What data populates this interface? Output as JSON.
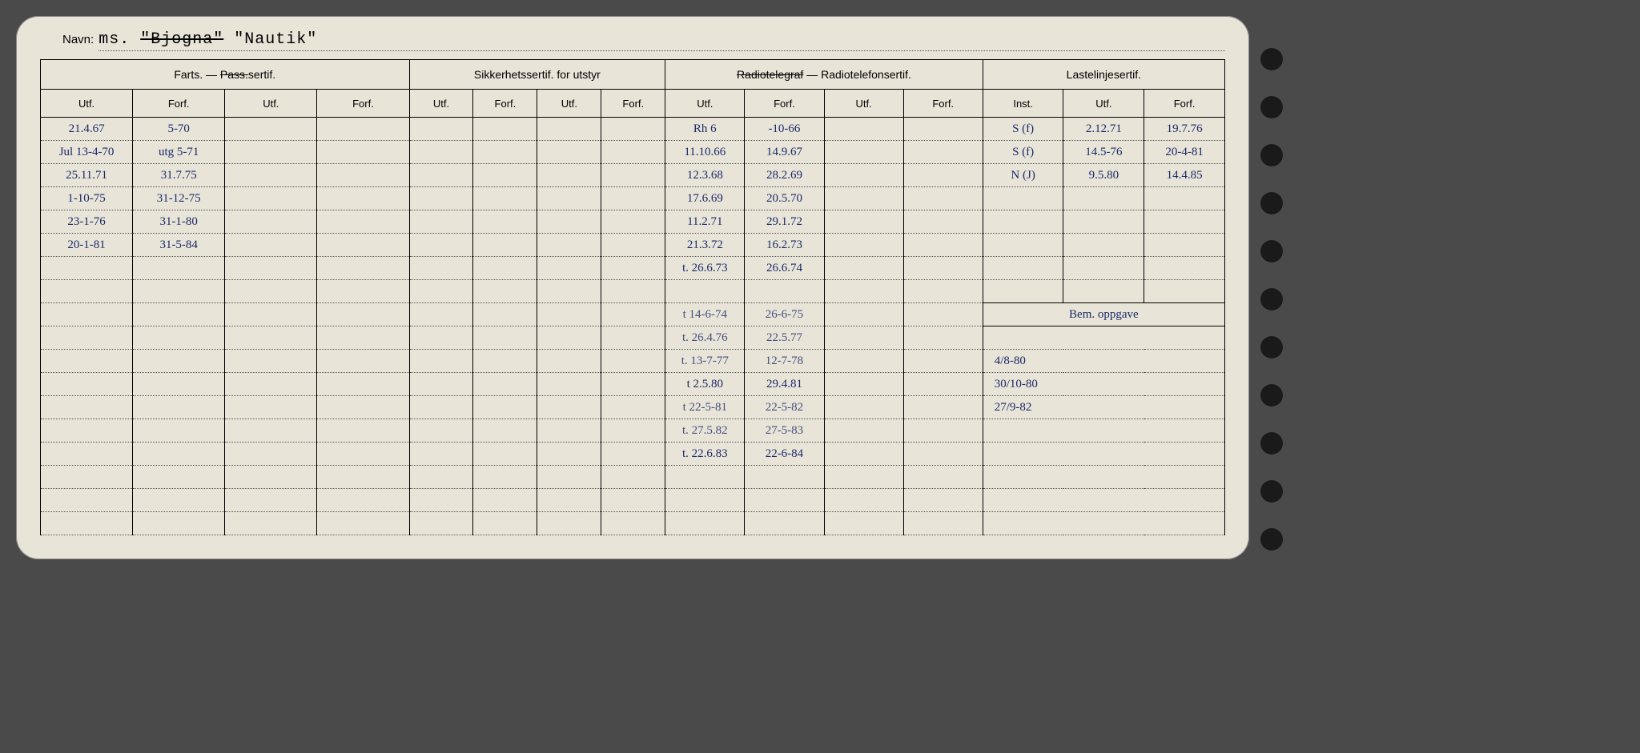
{
  "navn": {
    "label": "Navn:",
    "prefix": "ms.",
    "struck": "\"Bjogna\"",
    "current": "\"Nautik\""
  },
  "headers": {
    "farts": "Farts. — ",
    "farts_struck": "Pass.",
    "farts_suffix": "sertif.",
    "sikk": "Sikkerhetssertif. for utstyr",
    "radio_struck": "Radiotelegraf",
    "radio_suffix": " — Radiotelefonsertif.",
    "laste": "Lastelinjesertif.",
    "utf": "Utf.",
    "forf": "Forf.",
    "inst": "Inst.",
    "bem": "Bem. oppgave"
  },
  "farts": [
    {
      "u": "21.4.67",
      "f": "5-70"
    },
    {
      "u": "Jul 13-4-70",
      "f": "utg 5-71"
    },
    {
      "u": "25.11.71",
      "f": "31.7.75"
    },
    {
      "u": "1-10-75",
      "f": "31-12-75"
    },
    {
      "u": "23-1-76",
      "f": "31-1-80"
    },
    {
      "u": "20-1-81",
      "f": "31-5-84"
    }
  ],
  "radio": [
    {
      "u": "Rh 6",
      "f": "-10-66"
    },
    {
      "u": "11.10.66",
      "f": "14.9.67"
    },
    {
      "u": "12.3.68",
      "f": "28.2.69"
    },
    {
      "u": "17.6.69",
      "f": "20.5.70"
    },
    {
      "u": "11.2.71",
      "f": "29.1.72"
    },
    {
      "u": "21.3.72",
      "f": "16.2.73"
    },
    {
      "u": "t. 26.6.73",
      "f": "26.6.74"
    },
    {
      "u": "",
      "f": ""
    },
    {
      "u": "t 14-6-74",
      "f": "26-6-75",
      "faded": true
    },
    {
      "u": "t. 26.4.76",
      "f": "22.5.77",
      "faded": true
    },
    {
      "u": "t. 13-7-77",
      "f": "12-7-78",
      "faded": true
    },
    {
      "u": "t 2.5.80",
      "f": "29.4.81"
    },
    {
      "u": "t 22-5-81",
      "f": "22-5-82",
      "faded": true
    },
    {
      "u": "t. 27.5.82",
      "f": "27-5-83",
      "faded": true
    },
    {
      "u": "t. 22.6.83",
      "f": "22-6-84"
    }
  ],
  "laste": [
    {
      "i": "S (f)",
      "u": "2.12.71",
      "f": "19.7.76"
    },
    {
      "i": "S (f)",
      "u": "14.5-76",
      "f": "20-4-81"
    },
    {
      "i": "N (J)",
      "u": "9.5.80",
      "f": "14.4.85"
    }
  ],
  "bem": [
    "4/8-80",
    "30/10-80",
    "27/9-82"
  ],
  "colors": {
    "ink": "#1a2a6a",
    "paper": "#e8e4d8",
    "border": "#000000"
  }
}
